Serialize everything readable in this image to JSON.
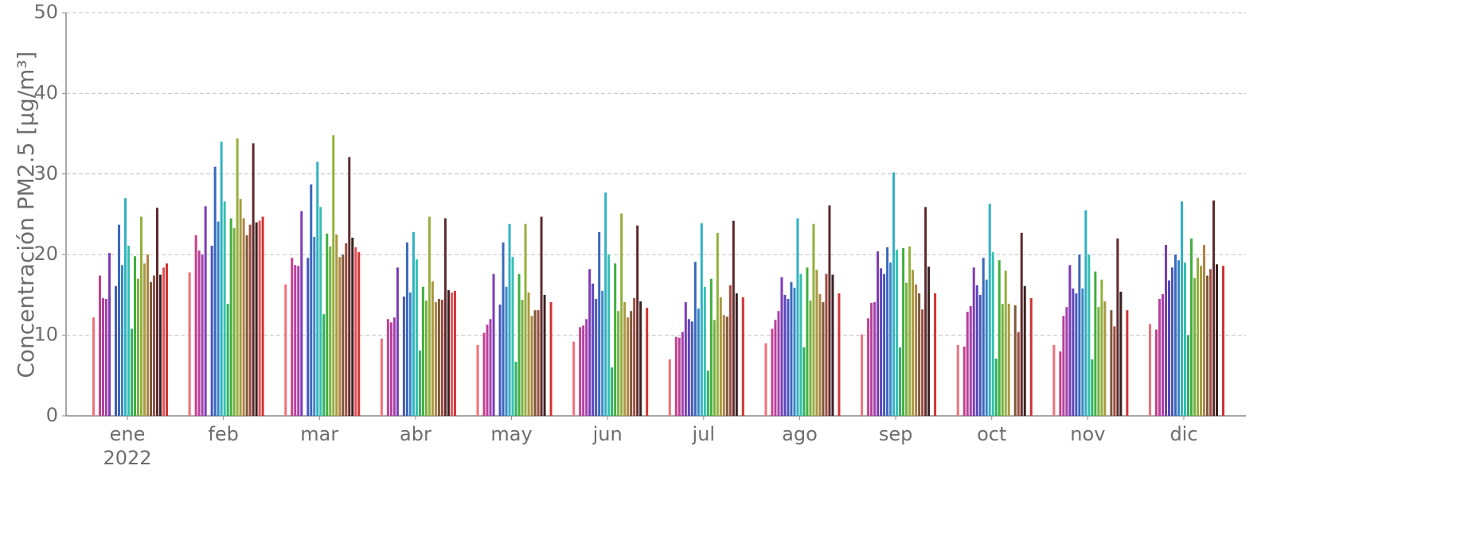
{
  "chart_data": {
    "type": "bar",
    "ylabel": "Concentración PM2.5 [μg/m³]",
    "categories": [
      "ene",
      "feb",
      "mar",
      "abr",
      "may",
      "jun",
      "jul",
      "ago",
      "sep",
      "oct",
      "nov",
      "dic"
    ],
    "year_label": "2022",
    "ylim": [
      0,
      50
    ],
    "yticks": [
      0,
      10,
      20,
      30,
      40,
      50
    ],
    "grid": true,
    "series": [
      {
        "color": "#f0707a",
        "values": [
          12.2,
          17.8,
          16.3,
          9.6,
          8.8,
          9.2,
          7.0,
          9.0,
          10.1,
          8.8,
          8.8,
          11.4
        ]
      },
      {
        "color": "#c8408a",
        "values": [
          17.4,
          22.4,
          19.6,
          12.0,
          10.3,
          11.0,
          9.8,
          10.8,
          12.1,
          8.6,
          8.0,
          10.7
        ]
      },
      {
        "color": "#b8409c",
        "values": [
          14.6,
          20.5,
          18.7,
          11.6,
          11.3,
          11.2,
          9.7,
          11.9,
          14.0,
          12.9,
          12.4,
          14.5
        ]
      },
      {
        "color": "#a440ac",
        "values": [
          14.5,
          20.0,
          18.6,
          12.2,
          12.0,
          12.0,
          10.4,
          13.0,
          14.1,
          13.6,
          13.5,
          15.1
        ]
      },
      {
        "color": "#7c3cb4",
        "values": [
          20.2,
          26.0,
          25.4,
          18.4,
          17.6,
          18.2,
          14.1,
          17.2,
          20.4,
          18.4,
          18.7,
          21.2
        ]
      },
      {
        "color": "#5c46b8",
        "values": [
          null,
          null,
          null,
          null,
          null,
          16.4,
          12.0,
          15.0,
          18.3,
          16.2,
          15.8,
          16.8
        ]
      },
      {
        "color": "#4a56bc",
        "values": [
          16.1,
          21.1,
          19.6,
          14.8,
          13.8,
          14.5,
          11.7,
          14.5,
          17.6,
          15.0,
          15.2,
          18.4
        ]
      },
      {
        "color": "#3a68bc",
        "values": [
          23.7,
          30.9,
          28.7,
          21.5,
          21.5,
          22.8,
          19.1,
          16.6,
          20.9,
          19.6,
          20.0,
          20.0
        ]
      },
      {
        "color": "#3a86c4",
        "values": [
          18.7,
          24.1,
          22.2,
          15.3,
          16.0,
          15.5,
          13.3,
          15.9,
          19.0,
          16.9,
          15.8,
          19.3
        ]
      },
      {
        "color": "#30b2c2",
        "values": [
          27.0,
          34.0,
          31.5,
          22.8,
          23.8,
          27.7,
          23.9,
          24.5,
          30.2,
          26.3,
          25.5,
          26.6
        ]
      },
      {
        "color": "#36c0b0",
        "values": [
          21.1,
          26.6,
          25.9,
          19.4,
          19.7,
          20.0,
          16.0,
          17.6,
          20.6,
          20.3,
          20.0,
          19.0
        ]
      },
      {
        "color": "#30b064",
        "values": [
          10.8,
          13.9,
          12.6,
          8.1,
          6.7,
          6.0,
          5.6,
          8.5,
          8.5,
          7.1,
          7.0,
          10.0
        ]
      },
      {
        "color": "#40b040",
        "values": [
          19.8,
          24.5,
          22.6,
          16.0,
          17.6,
          18.9,
          17.0,
          18.4,
          20.8,
          19.3,
          17.9,
          22.0
        ]
      },
      {
        "color": "#78b040",
        "values": [
          17.0,
          23.3,
          21.0,
          14.3,
          14.4,
          13.0,
          11.9,
          14.3,
          16.5,
          13.9,
          13.5,
          17.1
        ]
      },
      {
        "color": "#94b03c",
        "values": [
          24.7,
          34.4,
          34.8,
          24.7,
          23.8,
          25.1,
          22.7,
          23.8,
          21.0,
          18.0,
          16.9,
          19.6
        ]
      },
      {
        "color": "#a89a44",
        "values": [
          18.9,
          26.9,
          22.5,
          16.7,
          15.3,
          14.1,
          14.7,
          18.1,
          18.1,
          13.9,
          14.2,
          18.6
        ]
      },
      {
        "color": "#b08244",
        "values": [
          20.0,
          24.5,
          19.7,
          14.1,
          12.4,
          12.2,
          12.5,
          15.1,
          16.3,
          null,
          null,
          21.2
        ]
      },
      {
        "color": "#7a5a3a",
        "values": [
          16.6,
          22.4,
          20.0,
          14.5,
          13.1,
          13.0,
          12.3,
          14.1,
          15.2,
          13.7,
          13.1,
          17.4
        ]
      },
      {
        "color": "#a04a40",
        "values": [
          17.4,
          23.7,
          21.4,
          14.4,
          13.1,
          14.6,
          16.2,
          17.6,
          13.2,
          10.4,
          11.1,
          18.2
        ]
      },
      {
        "color": "#5e2a2c",
        "values": [
          25.8,
          33.8,
          32.1,
          24.5,
          24.7,
          23.6,
          24.2,
          26.1,
          25.9,
          22.7,
          22.0,
          26.7
        ]
      },
      {
        "color": "#3a2222",
        "values": [
          17.5,
          24.0,
          22.1,
          15.6,
          15.0,
          14.2,
          15.2,
          17.5,
          18.5,
          16.1,
          15.4,
          18.8
        ]
      },
      {
        "color": "#e8505a",
        "values": [
          18.4,
          24.2,
          20.9,
          15.3,
          null,
          null,
          null,
          null,
          null,
          null,
          null,
          null
        ]
      },
      {
        "color": "#d03434",
        "values": [
          18.9,
          24.7,
          20.3,
          15.5,
          14.1,
          13.4,
          14.7,
          15.2,
          15.2,
          14.6,
          13.1,
          18.6
        ]
      }
    ]
  }
}
